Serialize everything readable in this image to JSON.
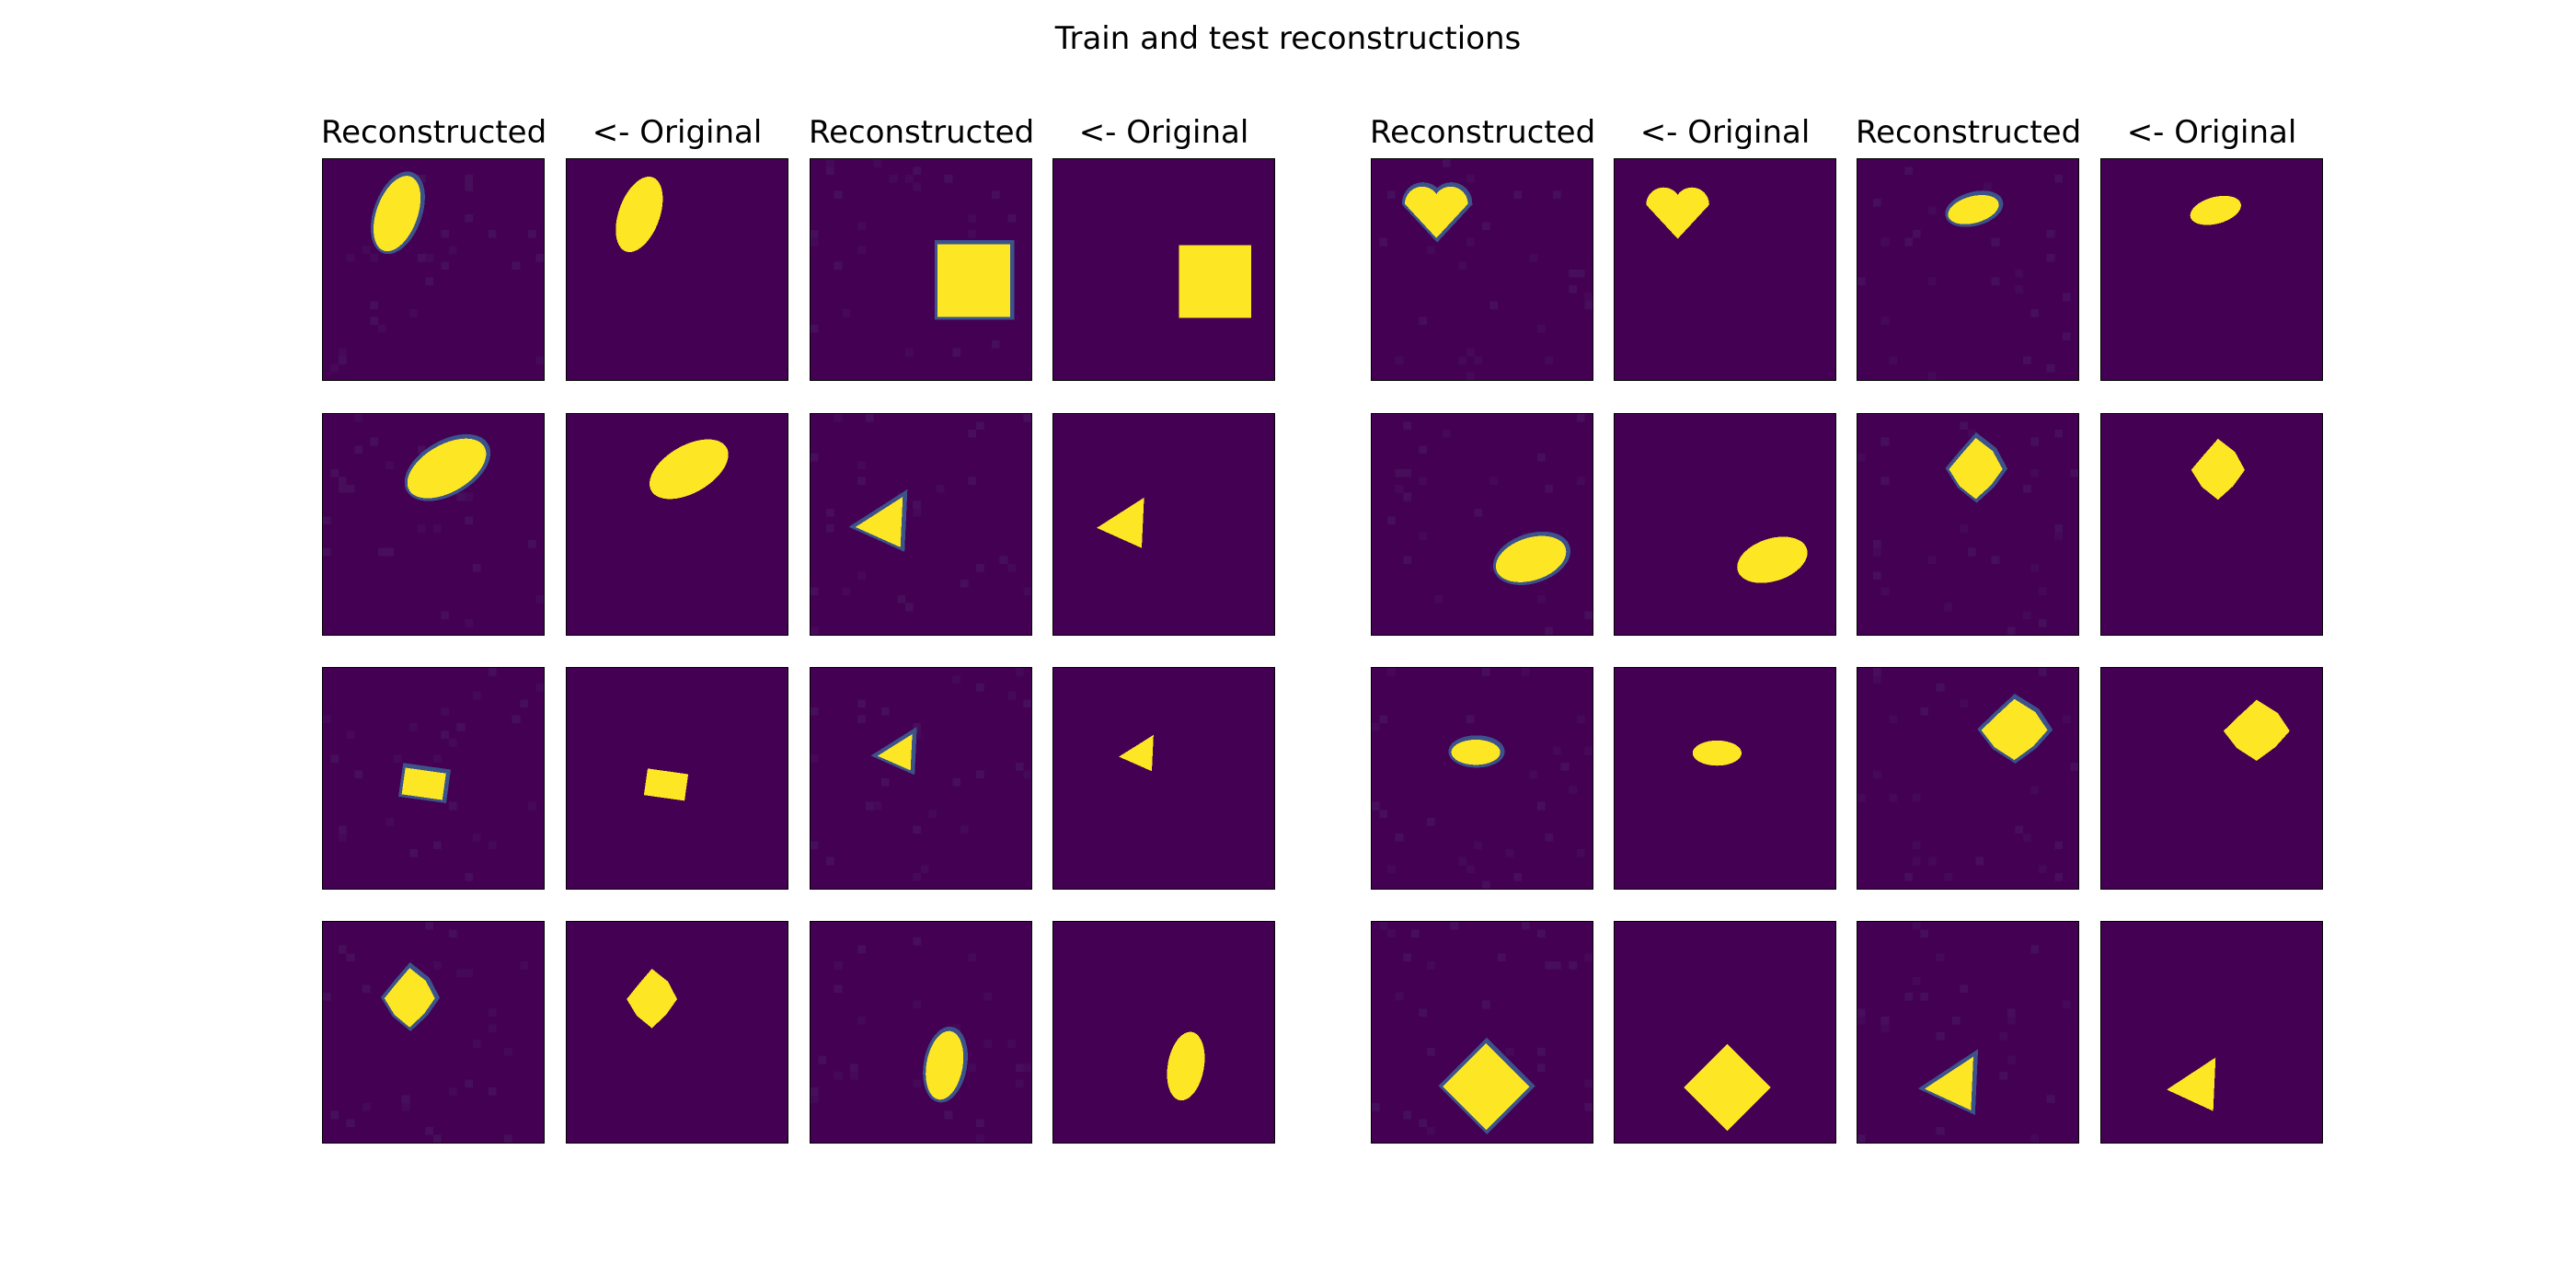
{
  "title": "Train and test reconstructions",
  "column_labels": [
    "Reconstructed",
    "<- Original",
    "Reconstructed",
    "<- Original",
    "Reconstructed",
    "<- Original",
    "Reconstructed",
    "<- Original"
  ],
  "colors": {
    "background": "#440154",
    "shape_fill": "#fde725",
    "edge_teal": "#2a9d8f",
    "edge_blue": "#3b528b",
    "border": "#000000"
  },
  "shapes": [
    [
      "ellipse-tilted",
      "square",
      "heart",
      "ellipse-small"
    ],
    [
      "ellipse-wide",
      "triangle",
      "ellipse-wide",
      "blob"
    ],
    [
      "square-small",
      "triangle-small",
      "ellipse-small",
      "blob"
    ],
    [
      "blob",
      "ellipse-tall",
      "diamond",
      "triangle"
    ]
  ]
}
